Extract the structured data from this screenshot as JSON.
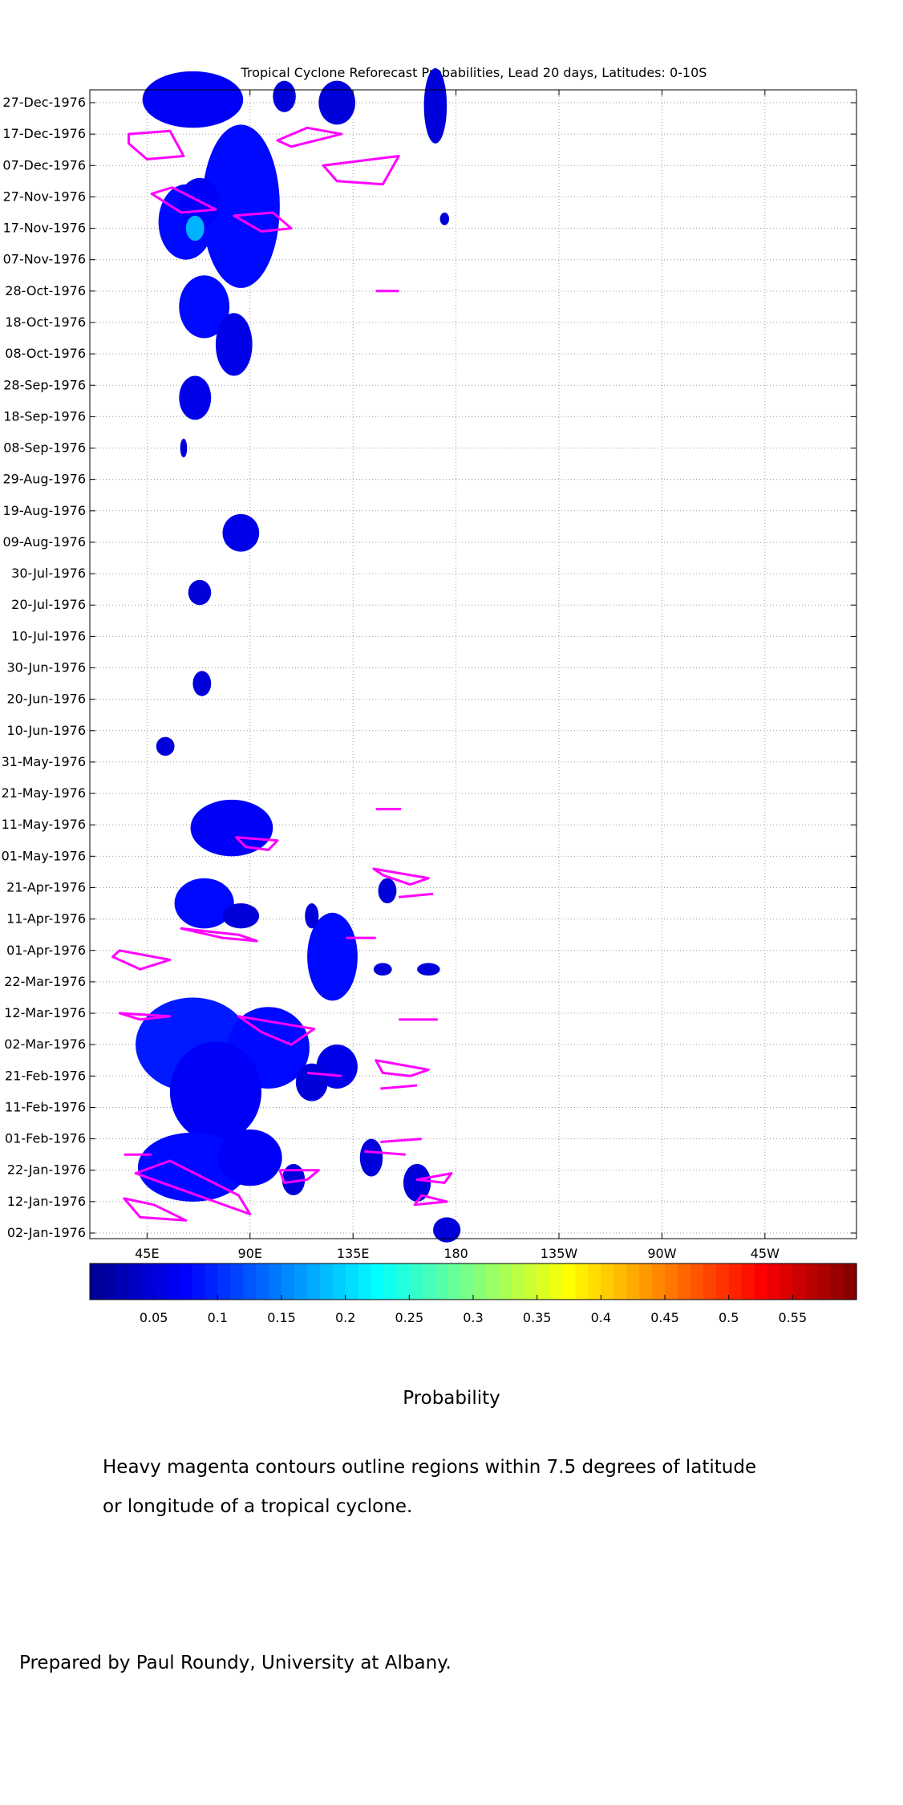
{
  "chart_data": {
    "type": "heatmap",
    "title": "Tropical Cyclone Reforecast Probabilities, Lead 20 days, Latitudes: 0-10S",
    "xlabel": "",
    "ylabel": "",
    "x_ticks": [
      "45E",
      "90E",
      "135E",
      "180",
      "135W",
      "90W",
      "45W"
    ],
    "y_ticks": [
      "27-Dec-1976",
      "17-Dec-1976",
      "07-Dec-1976",
      "27-Nov-1976",
      "17-Nov-1976",
      "07-Nov-1976",
      "28-Oct-1976",
      "18-Oct-1976",
      "08-Oct-1976",
      "28-Sep-1976",
      "18-Sep-1976",
      "08-Sep-1976",
      "29-Aug-1976",
      "19-Aug-1976",
      "09-Aug-1976",
      "30-Jul-1976",
      "20-Jul-1976",
      "10-Jul-1976",
      "30-Jun-1976",
      "20-Jun-1976",
      "10-Jun-1976",
      "31-May-1976",
      "21-May-1976",
      "11-May-1976",
      "01-May-1976",
      "21-Apr-1976",
      "11-Apr-1976",
      "01-Apr-1976",
      "22-Mar-1976",
      "12-Mar-1976",
      "02-Mar-1976",
      "21-Feb-1976",
      "11-Feb-1976",
      "01-Feb-1976",
      "22-Jan-1976",
      "12-Jan-1976",
      "02-Jan-1976"
    ],
    "x_range_deg_east": [
      20,
      355
    ],
    "grid": true,
    "colorbar": {
      "label": "Probability",
      "range": [
        0,
        0.6
      ],
      "ticks": [
        "0.05",
        "0.1",
        "0.15",
        "0.2",
        "0.25",
        "0.3",
        "0.35",
        "0.4",
        "0.45",
        "0.5",
        "0.55"
      ],
      "colors": [
        "#00008f",
        "#0000ff",
        "#0080ff",
        "#00ffff",
        "#80ff80",
        "#ffff00",
        "#ff8000",
        "#ff0000",
        "#800000"
      ]
    },
    "contour_color": "#ff00ff",
    "blobs": [
      {
        "lon": 65,
        "date": "1976-12-28",
        "rlon": 22,
        "rdays": 9,
        "p": 0.07
      },
      {
        "lon": 105,
        "date": "1976-12-29",
        "rlon": 5,
        "rdays": 5,
        "p": 0.05
      },
      {
        "lon": 128,
        "date": "1976-12-27",
        "rlon": 8,
        "rdays": 7,
        "p": 0.05
      },
      {
        "lon": 171,
        "date": "1976-12-26",
        "rlon": 5,
        "rdays": 12,
        "p": 0.05
      },
      {
        "lon": 86,
        "date": "1976-11-24",
        "rlon": 17,
        "rdays": 26,
        "p": 0.08
      },
      {
        "lon": 62,
        "date": "1976-11-19",
        "rlon": 12,
        "rdays": 12,
        "p": 0.08
      },
      {
        "lon": 68,
        "date": "1976-11-25",
        "rlon": 9,
        "rdays": 8,
        "p": 0.07
      },
      {
        "lon": 66,
        "date": "1976-11-17",
        "rlon": 4,
        "rdays": 4,
        "p": 0.18
      },
      {
        "lon": 175,
        "date": "1976-11-20",
        "rlon": 2,
        "rdays": 2,
        "p": 0.05
      },
      {
        "lon": 70,
        "date": "1976-10-23",
        "rlon": 11,
        "rdays": 10,
        "p": 0.08
      },
      {
        "lon": 83,
        "date": "1976-10-11",
        "rlon": 8,
        "rdays": 10,
        "p": 0.06
      },
      {
        "lon": 66,
        "date": "1976-09-24",
        "rlon": 7,
        "rdays": 7,
        "p": 0.06
      },
      {
        "lon": 61,
        "date": "1976-09-08",
        "rlon": 1.5,
        "rdays": 3,
        "p": 0.05
      },
      {
        "lon": 86,
        "date": "1976-08-12",
        "rlon": 8,
        "rdays": 6,
        "p": 0.06
      },
      {
        "lon": 68,
        "date": "1976-07-24",
        "rlon": 5,
        "rdays": 4,
        "p": 0.05
      },
      {
        "lon": 69,
        "date": "1976-06-25",
        "rlon": 4,
        "rdays": 4,
        "p": 0.05
      },
      {
        "lon": 53,
        "date": "1976-06-05",
        "rlon": 4,
        "rdays": 3,
        "p": 0.05
      },
      {
        "lon": 82,
        "date": "1976-05-10",
        "rlon": 18,
        "rdays": 9,
        "p": 0.07
      },
      {
        "lon": 70,
        "date": "1976-04-16",
        "rlon": 13,
        "rdays": 8,
        "p": 0.08
      },
      {
        "lon": 86,
        "date": "1976-04-12",
        "rlon": 8,
        "rdays": 4,
        "p": 0.05
      },
      {
        "lon": 126,
        "date": "1976-03-30",
        "rlon": 11,
        "rdays": 14,
        "p": 0.08
      },
      {
        "lon": 117,
        "date": "1976-04-12",
        "rlon": 3,
        "rdays": 4,
        "p": 0.05
      },
      {
        "lon": 150,
        "date": "1976-04-20",
        "rlon": 4,
        "rdays": 4,
        "p": 0.05
      },
      {
        "lon": 148,
        "date": "1976-03-26",
        "rlon": 4,
        "rdays": 2,
        "p": 0.05
      },
      {
        "lon": 168,
        "date": "1976-03-26",
        "rlon": 5,
        "rdays": 2,
        "p": 0.05
      },
      {
        "lon": 65,
        "date": "1976-03-02",
        "rlon": 25,
        "rdays": 15,
        "p": 0.09
      },
      {
        "lon": 98,
        "date": "1976-03-01",
        "rlon": 18,
        "rdays": 13,
        "p": 0.08
      },
      {
        "lon": 75,
        "date": "1976-02-16",
        "rlon": 20,
        "rdays": 16,
        "p": 0.07
      },
      {
        "lon": 65,
        "date": "1976-01-23",
        "rlon": 24,
        "rdays": 11,
        "p": 0.08
      },
      {
        "lon": 90,
        "date": "1976-01-26",
        "rlon": 14,
        "rdays": 9,
        "p": 0.07
      },
      {
        "lon": 128,
        "date": "1976-02-24",
        "rlon": 9,
        "rdays": 7,
        "p": 0.06
      },
      {
        "lon": 117,
        "date": "1976-02-19",
        "rlon": 7,
        "rdays": 6,
        "p": 0.05
      },
      {
        "lon": 143,
        "date": "1976-01-26",
        "rlon": 5,
        "rdays": 6,
        "p": 0.05
      },
      {
        "lon": 163,
        "date": "1976-01-18",
        "rlon": 6,
        "rdays": 6,
        "p": 0.05
      },
      {
        "lon": 176,
        "date": "1976-01-03",
        "rlon": 6,
        "rdays": 4,
        "p": 0.05
      },
      {
        "lon": 109,
        "date": "1976-01-19",
        "rlon": 5,
        "rdays": 5,
        "p": 0.05
      }
    ],
    "contours": [
      [
        [
          37,
          "1976-12-17"
        ],
        [
          55,
          "1976-12-18"
        ],
        [
          61,
          "1976-12-10"
        ],
        [
          45,
          "1976-12-09"
        ],
        [
          37,
          "1976-12-14"
        ]
      ],
      [
        [
          102,
          "1976-12-15"
        ],
        [
          115,
          "1976-12-19"
        ],
        [
          130,
          "1976-12-17"
        ],
        [
          108,
          "1976-12-13"
        ]
      ],
      [
        [
          122,
          "1976-12-07"
        ],
        [
          155,
          "1976-12-10"
        ],
        [
          148,
          "1976-12-01"
        ],
        [
          128,
          "1976-12-02"
        ]
      ],
      [
        [
          47,
          "1976-11-28"
        ],
        [
          56,
          "1976-11-30"
        ],
        [
          75,
          "1976-11-23"
        ],
        [
          60,
          "1976-11-22"
        ]
      ],
      [
        [
          83,
          "1976-11-21"
        ],
        [
          100,
          "1976-11-22"
        ],
        [
          108,
          "1976-11-17"
        ],
        [
          95,
          "1976-11-16"
        ]
      ],
      [
        [
          145,
          "1976-10-28"
        ],
        [
          155,
          "1976-10-28"
        ]
      ],
      [
        [
          145,
          "1976-05-16"
        ],
        [
          156,
          "1976-05-16"
        ]
      ],
      [
        [
          84,
          "1976-05-07"
        ],
        [
          102,
          "1976-05-06"
        ],
        [
          98,
          "1976-05-03"
        ],
        [
          88,
          "1976-05-04"
        ]
      ],
      [
        [
          144,
          "1976-04-27"
        ],
        [
          168,
          "1976-04-24"
        ],
        [
          160,
          "1976-04-22"
        ],
        [
          148,
          "1976-04-25"
        ]
      ],
      [
        [
          155,
          "1976-04-18"
        ],
        [
          170,
          "1976-04-19"
        ]
      ],
      [
        [
          60,
          "1976-04-08"
        ],
        [
          85,
          "1976-04-06"
        ],
        [
          93,
          "1976-04-04"
        ],
        [
          78,
          "1976-04-05"
        ]
      ],
      [
        [
          33,
          "1976-04-01"
        ],
        [
          55,
          "1976-03-29"
        ],
        [
          42,
          "1976-03-26"
        ],
        [
          30,
          "1976-03-30"
        ]
      ],
      [
        [
          132,
          "1976-04-05"
        ],
        [
          145,
          "1976-04-05"
        ]
      ],
      [
        [
          33,
          "1976-03-12"
        ],
        [
          55,
          "1976-03-11"
        ],
        [
          42,
          "1976-03-10"
        ]
      ],
      [
        [
          85,
          "1976-03-11"
        ],
        [
          118,
          "1976-03-07"
        ],
        [
          108,
          "1976-03-02"
        ],
        [
          95,
          "1976-03-06"
        ]
      ],
      [
        [
          155,
          "1976-03-10"
        ],
        [
          172,
          "1976-03-10"
        ]
      ],
      [
        [
          145,
          "1976-02-26"
        ],
        [
          168,
          "1976-02-23"
        ],
        [
          160,
          "1976-02-21"
        ],
        [
          148,
          "1976-02-22"
        ]
      ],
      [
        [
          115,
          "1976-02-22"
        ],
        [
          130,
          "1976-02-21"
        ]
      ],
      [
        [
          147,
          "1976-02-17"
        ],
        [
          163,
          "1976-02-18"
        ]
      ],
      [
        [
          147,
          "1976-01-31"
        ],
        [
          165,
          "1976-02-01"
        ]
      ],
      [
        [
          140,
          "1976-01-28"
        ],
        [
          158,
          "1976-01-27"
        ]
      ],
      [
        [
          35,
          "1976-01-27"
        ],
        [
          47,
          "1976-01-27"
        ]
      ],
      [
        [
          40,
          "1976-01-21"
        ],
        [
          90,
          "1976-01-08"
        ],
        [
          85,
          "1976-01-14"
        ],
        [
          55,
          "1976-01-25"
        ]
      ],
      [
        [
          35,
          "1976-01-13"
        ],
        [
          42,
          "1976-01-07"
        ],
        [
          62,
          "1976-01-06"
        ],
        [
          48,
          "1976-01-11"
        ]
      ],
      [
        [
          103,
          "1976-01-22"
        ],
        [
          120,
          "1976-01-22"
        ],
        [
          115,
          "1976-01-19"
        ],
        [
          105,
          "1976-01-18"
        ]
      ],
      [
        [
          163,
          "1976-01-19"
        ],
        [
          178,
          "1976-01-21"
        ],
        [
          175,
          "1976-01-18"
        ]
      ],
      [
        [
          165,
          "1976-01-14"
        ],
        [
          176,
          "1976-01-12"
        ],
        [
          162,
          "1976-01-11"
        ]
      ]
    ]
  },
  "footnote_line1": "Heavy magenta contours outline regions within 7.5 degrees of latitude",
  "footnote_line2": "or longitude of a tropical cyclone.",
  "credit": "Prepared by Paul Roundy, University at Albany."
}
